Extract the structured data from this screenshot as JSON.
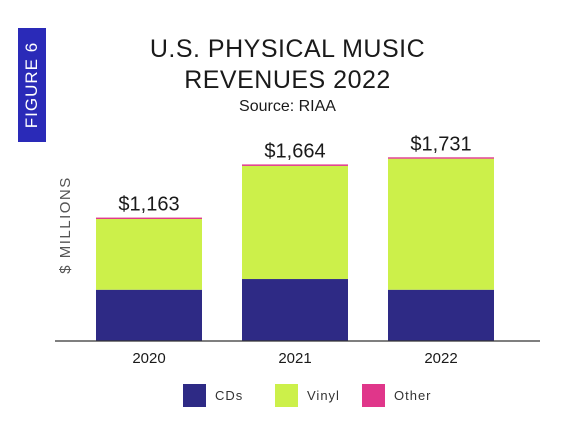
{
  "figure_tab": "FIGURE 6",
  "title_lines": [
    "U.S. PHYSICAL MUSIC",
    "REVENUES 2022"
  ],
  "subtitle": "Source: RIAA",
  "chart_data": {
    "type": "bar",
    "stacked": true,
    "ylabel": "$ MILLIONS",
    "categories": [
      "2020",
      "2021",
      "2022"
    ],
    "series": [
      {
        "name": "CDs",
        "color": "#2e2a85",
        "values": [
          483,
          584,
          483
        ]
      },
      {
        "name": "Vinyl",
        "color": "#ccf04a",
        "values": [
          667,
          1066,
          1235
        ]
      },
      {
        "name": "Other",
        "color": "#e0368a",
        "values": [
          13,
          14,
          13
        ]
      }
    ],
    "totals": [
      "$1,163",
      "$1,664",
      "$1,731"
    ],
    "ylim": [
      0,
      1800
    ],
    "grid": false,
    "legend_position": "bottom"
  }
}
